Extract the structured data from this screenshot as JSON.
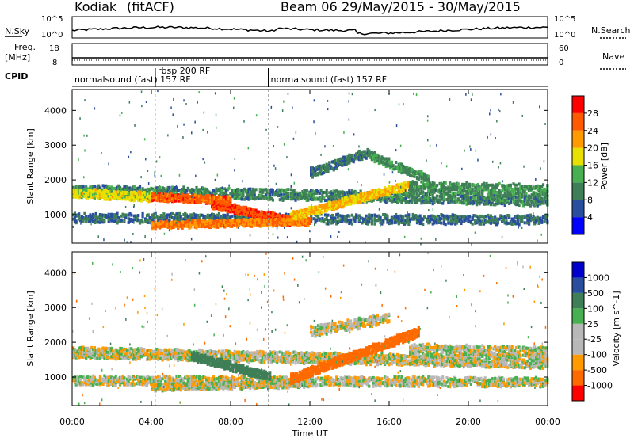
{
  "header": {
    "station": "Kodiak",
    "method": "(fitACF)",
    "beam": "Beam 06",
    "dates": "29/May/2015 - 30/May/2015"
  },
  "nsky_panel": {
    "left_label": "N.Sky",
    "right_label": "N.Search",
    "left_ticks": [
      "10^5",
      "10^0"
    ],
    "right_ticks": [
      "10^5",
      "10^0"
    ]
  },
  "freq_panel": {
    "left_label_line1": "Freq.",
    "left_label_line2": "[MHz]",
    "right_label": "Nave",
    "left_ticks": [
      "18",
      "8"
    ],
    "right_ticks": [
      "60",
      "0"
    ]
  },
  "cpid_panel": {
    "label": "CPID",
    "modes": [
      {
        "start_hour": 0,
        "end_hour": 4.2,
        "name": "normalsound (fast) 157 RF"
      },
      {
        "start_hour": 4.2,
        "end_hour": 9.9,
        "name": "rbsp 200 RF"
      },
      {
        "start_hour": 9.9,
        "end_hour": 24,
        "name": "normalsound (fast) 157 RF"
      }
    ]
  },
  "x_axis": {
    "label": "Time UT",
    "ticks": [
      "00:00",
      "04:00",
      "08:00",
      "12:00",
      "16:00",
      "20:00",
      "00:00"
    ],
    "tick_hours": [
      0,
      4,
      8,
      12,
      16,
      20,
      24
    ]
  },
  "chart_data": [
    {
      "type": "heatmap",
      "name": "power",
      "ylabel": "Slant Range [km]",
      "yticks": [
        1000,
        2000,
        3000,
        4000
      ],
      "ylim": [
        180,
        4600
      ],
      "xlim": [
        0,
        24
      ],
      "colorbar": {
        "label": "Power [dB]",
        "ticks": [
          "4",
          "8",
          "12",
          "16",
          "20",
          "24",
          "28"
        ],
        "range": [
          0,
          30
        ]
      },
      "bands": [
        {
          "x0": 0,
          "x1": 24,
          "y_start": 1700,
          "y_end": 1400,
          "width": 260,
          "value": 10,
          "density": 0.55
        },
        {
          "x0": 0,
          "x1": 24,
          "y_start": 900,
          "y_end": 850,
          "width": 220,
          "value": 8,
          "density": 0.4
        },
        {
          "x0": 0,
          "x1": 4,
          "y_start": 1620,
          "y_end": 1500,
          "width": 200,
          "value": 18,
          "density": 0.7
        },
        {
          "x0": 4,
          "x1": 8,
          "y_start": 1500,
          "y_end": 1400,
          "width": 180,
          "value": 26,
          "density": 0.8
        },
        {
          "x0": 7,
          "x1": 11,
          "y_start": 1300,
          "y_end": 800,
          "width": 200,
          "value": 27,
          "density": 0.8
        },
        {
          "x0": 4,
          "x1": 12,
          "y_start": 700,
          "y_end": 800,
          "width": 150,
          "value": 24,
          "density": 0.7
        },
        {
          "x0": 11,
          "x1": 17,
          "y_start": 950,
          "y_end": 1850,
          "width": 200,
          "value": 20,
          "density": 0.65
        },
        {
          "x0": 12,
          "x1": 15,
          "y_start": 2200,
          "y_end": 2800,
          "width": 220,
          "value": 9,
          "density": 0.5
        },
        {
          "x0": 15,
          "x1": 18,
          "y_start": 2700,
          "y_end": 2000,
          "width": 200,
          "value": 11,
          "density": 0.55
        },
        {
          "x0": 17,
          "x1": 24,
          "y_start": 1800,
          "y_end": 1700,
          "width": 260,
          "value": 11,
          "density": 0.5
        }
      ]
    },
    {
      "type": "heatmap",
      "name": "velocity",
      "ylabel": "Slant Range [km]",
      "yticks": [
        1000,
        2000,
        3000,
        4000
      ],
      "ylim": [
        180,
        4600
      ],
      "xlim": [
        0,
        24
      ],
      "colorbar": {
        "label": "Velocity [m s^-1]",
        "ticks": [
          "1000",
          "500",
          "100",
          "25",
          "-25",
          "-100",
          "-500",
          "-1000"
        ],
        "range": [
          -1200,
          1200
        ]
      },
      "bands": [
        {
          "x0": 0,
          "x1": 24,
          "y_start": 1700,
          "y_end": 1400,
          "width": 260,
          "value": 0,
          "density": 0.65
        },
        {
          "x0": 0,
          "x1": 24,
          "y_start": 900,
          "y_end": 850,
          "width": 220,
          "value": 0,
          "density": 0.5
        },
        {
          "x0": 6,
          "x1": 10,
          "y_start": 1600,
          "y_end": 1000,
          "width": 200,
          "value": 200,
          "density": 0.7
        },
        {
          "x0": 4,
          "x1": 12,
          "y_start": 700,
          "y_end": 800,
          "width": 150,
          "value": 0,
          "density": 0.6
        },
        {
          "x0": 11,
          "x1": 17.5,
          "y_start": 950,
          "y_end": 2300,
          "width": 220,
          "value": -300,
          "density": 0.75
        },
        {
          "x0": 12,
          "x1": 16,
          "y_start": 2300,
          "y_end": 2700,
          "width": 250,
          "value": 0,
          "density": 0.55
        },
        {
          "x0": 17,
          "x1": 24,
          "y_start": 1800,
          "y_end": 1700,
          "width": 260,
          "value": 0,
          "density": 0.55
        }
      ]
    }
  ],
  "colors": {
    "power_scale": [
      "#0000ff",
      "#2a4e9e",
      "#3f7f57",
      "#48b050",
      "#e8e000",
      "#ff9a00",
      "#ff5a00",
      "#ff0000"
    ],
    "velocity_scale": [
      "#ff0000",
      "#ff6a00",
      "#ff9a00",
      "#b8b8b8",
      "#b8b8b8",
      "#48b050",
      "#3f7f57",
      "#2a4e9e",
      "#0000cc"
    ],
    "ground_scatter": "#a6a6a6"
  }
}
